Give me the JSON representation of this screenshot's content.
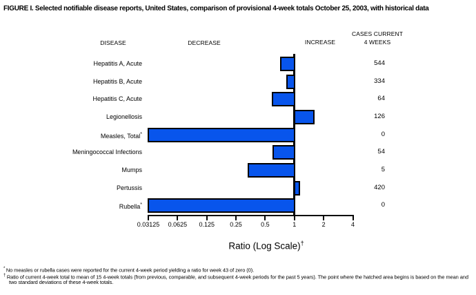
{
  "title": "FIGURE I. Selected notifiable disease reports, United States, comparison of provisional 4-week totals October 25, 2003, with historical data",
  "columns": {
    "disease": "DISEASE",
    "decrease": "DECREASE",
    "increase": "INCREASE",
    "cases_line1": "CASES CURRENT",
    "cases_line2": "4 WEEKS"
  },
  "chart_data": {
    "type": "bar",
    "orientation": "horizontal",
    "scale": "log2",
    "xlabel": "Ratio (Log Scale)",
    "xlabel_superscript": "†",
    "xlim": [
      0.03125,
      4
    ],
    "baseline": 1,
    "grid": false,
    "axis_ticks": [
      "0.03125",
      "0.0625",
      "0.125",
      "0.25",
      "0.5",
      "1",
      "2",
      "4"
    ],
    "bar_color": "#0855EC",
    "bar_border_color": "#000000",
    "rows": [
      {
        "disease": "Hepatitis A, Acute",
        "marker": "",
        "ratio": 0.71,
        "cases": "544"
      },
      {
        "disease": "Hepatitis B, Acute",
        "marker": "",
        "ratio": 0.83,
        "cases": "334"
      },
      {
        "disease": "Hepatitis C, Acute",
        "marker": "",
        "ratio": 0.59,
        "cases": "64"
      },
      {
        "disease": "Legionellosis",
        "marker": "",
        "ratio": 1.61,
        "cases": "126"
      },
      {
        "disease": "Measles, Total",
        "marker": "*",
        "ratio": 0,
        "cases": "0"
      },
      {
        "disease": "Meningococcal Infections",
        "marker": "",
        "ratio": 0.6,
        "cases": "54"
      },
      {
        "disease": "Mumps",
        "marker": "",
        "ratio": 0.33,
        "cases": "5"
      },
      {
        "disease": "Pertussis",
        "marker": "",
        "ratio": 1.14,
        "cases": "420"
      },
      {
        "disease": "Rubella",
        "marker": "*",
        "ratio": 0,
        "cases": "0"
      }
    ]
  },
  "footnotes": [
    {
      "marker": "*",
      "text": "No measles or rubella cases were reported for the current 4-week period yielding a ratio for week 43 of zero (0)."
    },
    {
      "marker": "†",
      "text": "Ratio of current 4-week total to mean of 15 4-week totals (from previous, comparable, and subsequent 4-week periods for the past 5 years). The point where the hatched area begins is based on the mean and two standard deviations of these 4-week totals."
    }
  ]
}
